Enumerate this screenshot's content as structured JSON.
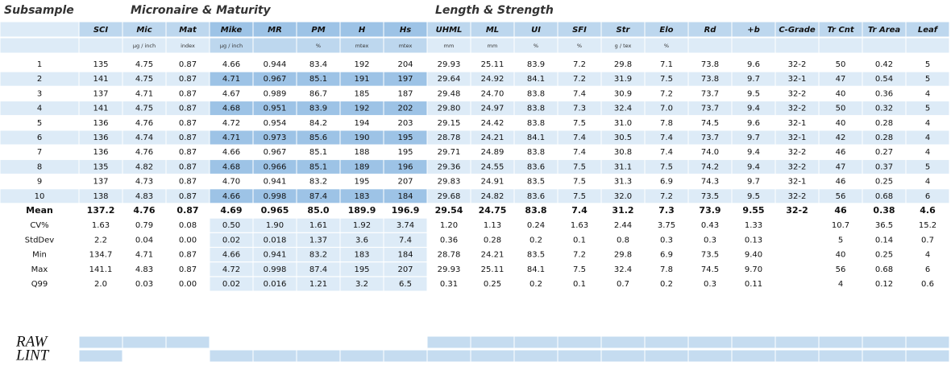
{
  "headings": {
    "subsample": "Subsample",
    "micronaire": "Micronaire & Maturity",
    "length": "Length & Strength"
  },
  "columns": [
    "SCI",
    "Mic",
    "Mat",
    "Mike",
    "MR",
    "PM",
    "H",
    "Hs",
    "UHML",
    "ML",
    "UI",
    "SFI",
    "Str",
    "Elo",
    "Rd",
    "+b",
    "C-Grade",
    "Tr Cnt",
    "Tr Area",
    "Leaf"
  ],
  "units": [
    null,
    "µg / inch",
    "index",
    "µg / inch",
    null,
    "%",
    "mtex",
    "mtex",
    "mm",
    "mm",
    "%",
    "%",
    "g / tex",
    "%",
    null,
    null,
    null,
    null,
    null,
    null
  ],
  "rows": [
    {
      "label": "1",
      "cells": [
        "135",
        "4.75",
        "0.87",
        "4.66",
        "0.944",
        "83.4",
        "192",
        "204",
        "29.93",
        "25.11",
        "83.9",
        "7.2",
        "29.8",
        "7.1",
        "73.8",
        "9.6",
        "32-2",
        "50",
        "0.42",
        "5"
      ]
    },
    {
      "label": "2",
      "cells": [
        "141",
        "4.75",
        "0.87",
        "4.71",
        "0.967",
        "85.1",
        "191",
        "197",
        "29.64",
        "24.92",
        "84.1",
        "7.2",
        "31.9",
        "7.5",
        "73.8",
        "9.7",
        "32-1",
        "47",
        "0.54",
        "5"
      ]
    },
    {
      "label": "3",
      "cells": [
        "137",
        "4.71",
        "0.87",
        "4.67",
        "0.989",
        "86.7",
        "185",
        "187",
        "29.48",
        "24.70",
        "83.8",
        "7.4",
        "30.9",
        "7.2",
        "73.7",
        "9.5",
        "32-2",
        "40",
        "0.36",
        "4"
      ]
    },
    {
      "label": "4",
      "cells": [
        "141",
        "4.75",
        "0.87",
        "4.68",
        "0.951",
        "83.9",
        "192",
        "202",
        "29.80",
        "24.97",
        "83.8",
        "7.3",
        "32.4",
        "7.0",
        "73.7",
        "9.4",
        "32-2",
        "50",
        "0.32",
        "5"
      ]
    },
    {
      "label": "5",
      "cells": [
        "136",
        "4.76",
        "0.87",
        "4.72",
        "0.954",
        "84.2",
        "194",
        "203",
        "29.15",
        "24.42",
        "83.8",
        "7.5",
        "31.0",
        "7.8",
        "74.5",
        "9.6",
        "32-1",
        "40",
        "0.28",
        "4"
      ]
    },
    {
      "label": "6",
      "cells": [
        "136",
        "4.74",
        "0.87",
        "4.71",
        "0.973",
        "85.6",
        "190",
        "195",
        "28.78",
        "24.21",
        "84.1",
        "7.4",
        "30.5",
        "7.4",
        "73.7",
        "9.7",
        "32-1",
        "42",
        "0.28",
        "4"
      ]
    },
    {
      "label": "7",
      "cells": [
        "136",
        "4.76",
        "0.87",
        "4.66",
        "0.967",
        "85.1",
        "188",
        "195",
        "29.71",
        "24.89",
        "83.8",
        "7.4",
        "30.8",
        "7.4",
        "74.0",
        "9.4",
        "32-2",
        "46",
        "0.27",
        "4"
      ]
    },
    {
      "label": "8",
      "cells": [
        "135",
        "4.82",
        "0.87",
        "4.68",
        "0.966",
        "85.1",
        "189",
        "196",
        "29.36",
        "24.55",
        "83.6",
        "7.5",
        "31.1",
        "7.5",
        "74.2",
        "9.4",
        "32-2",
        "47",
        "0.37",
        "5"
      ]
    },
    {
      "label": "9",
      "cells": [
        "137",
        "4.73",
        "0.87",
        "4.70",
        "0.941",
        "83.2",
        "195",
        "207",
        "29.83",
        "24.91",
        "83.5",
        "7.5",
        "31.3",
        "6.9",
        "74.3",
        "9.7",
        "32-1",
        "46",
        "0.25",
        "4"
      ]
    },
    {
      "label": "10",
      "cells": [
        "138",
        "4.83",
        "0.87",
        "4.66",
        "0.998",
        "87.4",
        "183",
        "184",
        "29.68",
        "24.82",
        "83.6",
        "7.5",
        "32.0",
        "7.2",
        "73.5",
        "9.5",
        "32-2",
        "56",
        "0.68",
        "6"
      ]
    },
    {
      "label": "Mean",
      "cells": [
        "137.2",
        "4.76",
        "0.87",
        "4.69",
        "0.965",
        "85.0",
        "189.9",
        "196.9",
        "29.54",
        "24.75",
        "83.8",
        "7.4",
        "31.2",
        "7.3",
        "73.9",
        "9.55",
        "32-2",
        "46",
        "0.38",
        "4.6"
      ]
    },
    {
      "label": "CV%",
      "cells": [
        "1.63",
        "0.79",
        "0.08",
        "0.50",
        "1.90",
        "1.61",
        "1.92",
        "3.74",
        "1.20",
        "1.13",
        "0.24",
        "1.63",
        "2.44",
        "3.75",
        "0.43",
        "1.33",
        null,
        "10.7",
        "36.5",
        "15.2"
      ]
    },
    {
      "label": "StdDev",
      "cells": [
        "2.2",
        "0.04",
        "0.00",
        "0.02",
        "0.018",
        "1.37",
        "3.6",
        "7.4",
        "0.36",
        "0.28",
        "0.2",
        "0.1",
        "0.8",
        "0.3",
        "0.3",
        "0.13",
        null,
        "5",
        "0.14",
        "0.7"
      ]
    },
    {
      "label": "Min",
      "cells": [
        "134.7",
        "4.71",
        "0.87",
        "4.66",
        "0.941",
        "83.2",
        "183",
        "184",
        "28.78",
        "24.21",
        "83.5",
        "7.2",
        "29.8",
        "6.9",
        "73.5",
        "9.40",
        null,
        "40",
        "0.25",
        "4"
      ]
    },
    {
      "label": "Max",
      "cells": [
        "141.1",
        "4.83",
        "0.87",
        "4.72",
        "0.998",
        "87.4",
        "195",
        "207",
        "29.93",
        "25.11",
        "84.1",
        "7.5",
        "32.4",
        "7.8",
        "74.5",
        "9.70",
        null,
        "56",
        "0.68",
        "6"
      ]
    },
    {
      "label": "Q99",
      "cells": [
        "2.0",
        "0.03",
        "0.00",
        "0.02",
        "0.016",
        "1.21",
        "3.2",
        "6.5",
        "0.31",
        "0.25",
        "0.2",
        "0.1",
        "0.7",
        "0.2",
        "0.3",
        "0.11",
        null,
        "4",
        "0.12",
        "0.6"
      ]
    }
  ],
  "footer": [
    "RAW",
    "LINT"
  ]
}
